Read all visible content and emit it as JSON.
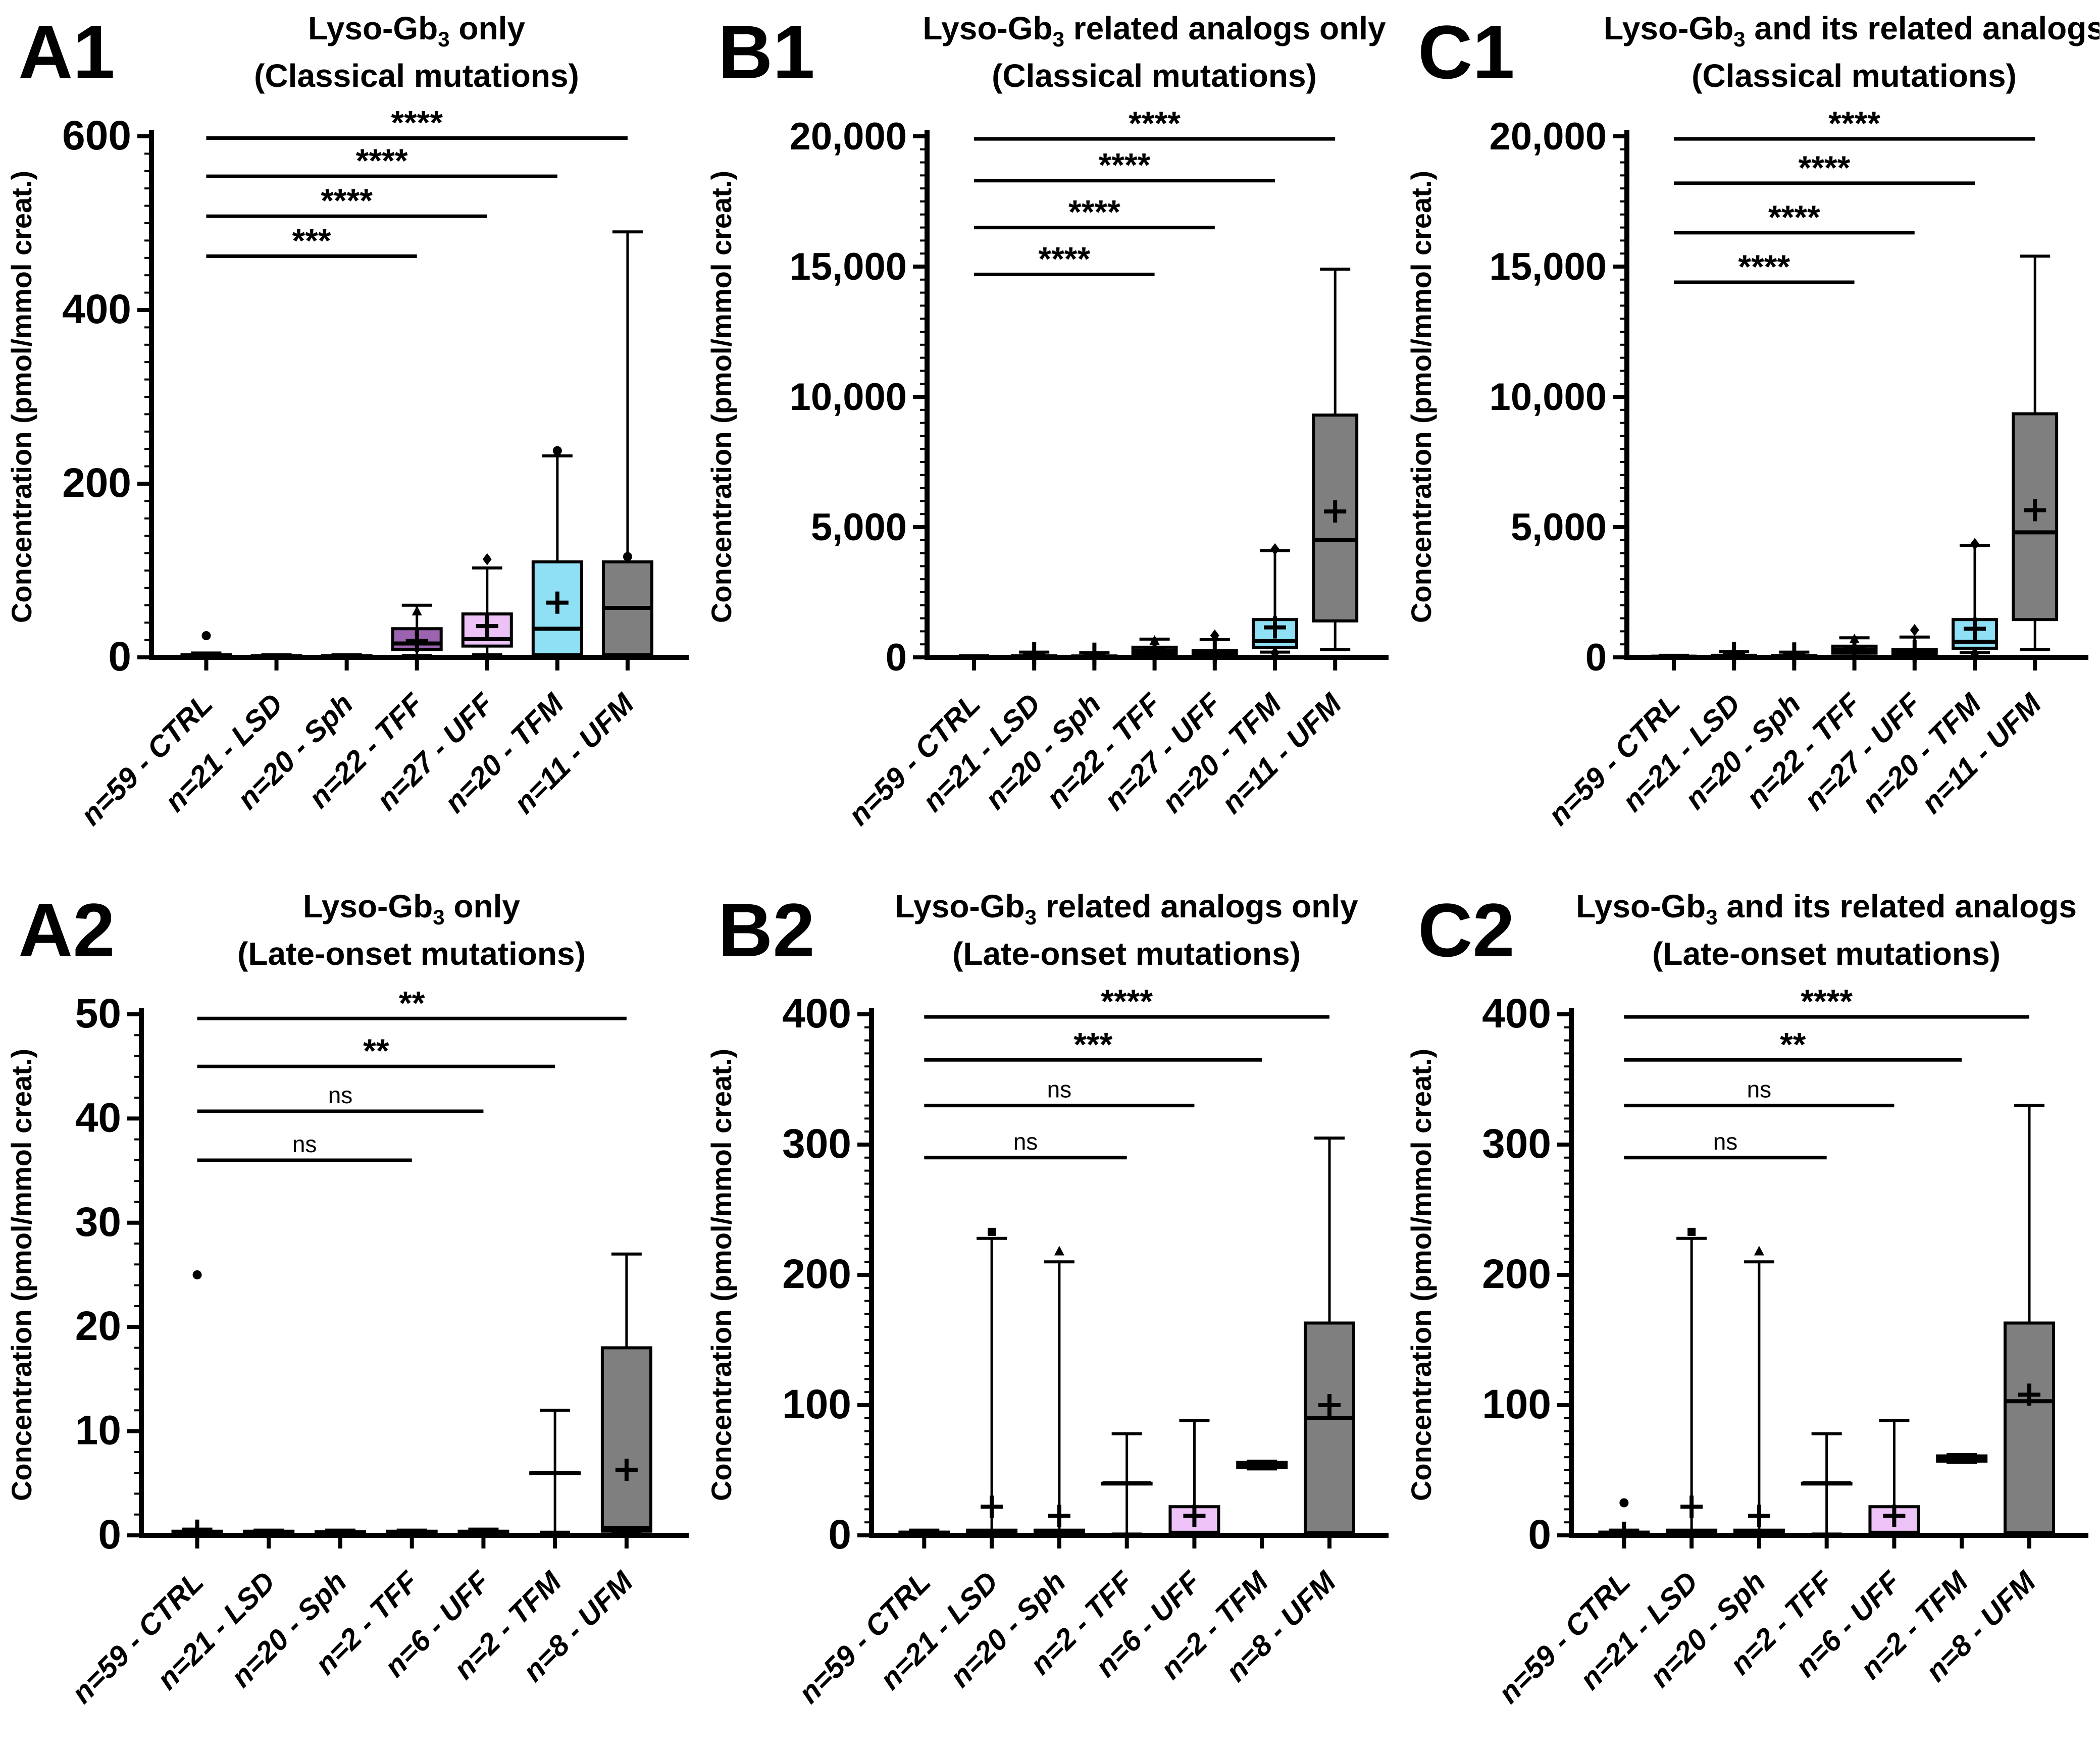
{
  "chart_data": [
    {
      "id": "A1",
      "type": "box",
      "letter": "A1",
      "title": {
        "pre": "Lyso-Gb",
        "sub": "3",
        "post": " only"
      },
      "subtitle": "(Classical mutations)",
      "ylabel": "Concentration (pmol/mmol creat.)",
      "ylim": [
        0,
        600
      ],
      "ymajor": 200,
      "yminor": 20,
      "ytick_labels": [
        "0",
        "200",
        "400",
        "600"
      ],
      "categories": [
        "n=59 - CTRL",
        "n=21 - LSD",
        "n=20 - Sph",
        "n=22 - TFF",
        "n=27 - UFF",
        "n=20 - TFM",
        "n=11 - UFM"
      ],
      "group_colors": [
        "#ffffff",
        "#ffffff",
        "#ffffff",
        "#9C64B0",
        "#EDC2F6",
        "#8FE0F5",
        "#7F7F7F"
      ],
      "boxes": [
        {
          "lo": 0.5,
          "q1": 0.8,
          "med": 1.5,
          "q3": 3,
          "hi": 5,
          "mean": null,
          "outliers": [
            {
              "v": 25,
              "g": "dot"
            }
          ]
        },
        {
          "lo": 0.3,
          "q1": 0.6,
          "med": 1,
          "q3": 2,
          "hi": 3,
          "mean": null,
          "outliers": []
        },
        {
          "lo": 0.3,
          "q1": 0.6,
          "med": 1,
          "q3": 2,
          "hi": 3,
          "mean": null,
          "outliers": []
        },
        {
          "lo": 2,
          "q1": 9,
          "med": 16,
          "q3": 33,
          "hi": 60,
          "mean": 19,
          "outliers": [
            {
              "v": 53,
              "g": "triangle"
            }
          ]
        },
        {
          "lo": 3,
          "q1": 13,
          "med": 21,
          "q3": 50,
          "hi": 103,
          "mean": 36,
          "outliers": [
            {
              "v": 113,
              "g": "diamond"
            }
          ]
        },
        {
          "lo": 1,
          "q1": 3,
          "med": 33,
          "q3": 110,
          "hi": 232,
          "mean": 63,
          "outliers": [
            {
              "v": 238,
              "g": "dot"
            }
          ]
        },
        {
          "lo": 1,
          "q1": 3,
          "med": 57,
          "q3": 110,
          "hi": 490,
          "mean": null,
          "outliers": [
            {
              "v": 116,
              "g": "dot"
            }
          ]
        }
      ],
      "significance": [
        {
          "from": 0,
          "to": 3,
          "y": 462,
          "label": "***"
        },
        {
          "from": 0,
          "to": 4,
          "y": 508,
          "label": "****"
        },
        {
          "from": 0,
          "to": 5,
          "y": 554,
          "label": "****"
        },
        {
          "from": 0,
          "to": 6,
          "y": 598,
          "label": "****"
        }
      ]
    },
    {
      "id": "B1",
      "type": "box",
      "letter": "B1",
      "title": {
        "pre": "Lyso-Gb",
        "sub": "3",
        "post": " related analogs only"
      },
      "subtitle": "(Classical mutations)",
      "ylabel": "Concentration (pmol/mmol creat.)",
      "ylim": [
        0,
        20000
      ],
      "ymajor": 5000,
      "yminor": 500,
      "ytick_labels": [
        "0",
        "5,000",
        "10,000",
        "15,000",
        "20,000"
      ],
      "categories": [
        "n=59 - CTRL",
        "n=21 - LSD",
        "n=20 - Sph",
        "n=22 - TFF",
        "n=27 - UFF",
        "n=20 - TFM",
        "n=11 - UFM"
      ],
      "group_colors": [
        "#ffffff",
        "#ffffff",
        "#ffffff",
        "#9C64B0",
        "#EDC2F6",
        "#8FE0F5",
        "#7F7F7F"
      ],
      "boxes": [
        {
          "lo": 5,
          "q1": 10,
          "med": 20,
          "q3": 35,
          "hi": 60,
          "mean": null,
          "outliers": []
        },
        {
          "lo": 5,
          "q1": 15,
          "med": 30,
          "q3": 60,
          "hi": 200,
          "mean": 160,
          "outliers": []
        },
        {
          "lo": 5,
          "q1": 15,
          "med": 30,
          "q3": 55,
          "hi": 180,
          "mean": 140,
          "outliers": []
        },
        {
          "lo": 30,
          "q1": 130,
          "med": 250,
          "q3": 390,
          "hi": 700,
          "mean": 280,
          "outliers": [
            {
              "v": 640,
              "g": "triangle"
            }
          ]
        },
        {
          "lo": 20,
          "q1": 60,
          "med": 150,
          "q3": 260,
          "hi": 680,
          "mean": 200,
          "outliers": [
            {
              "v": 840,
              "g": "diamond"
            }
          ]
        },
        {
          "lo": 200,
          "q1": 380,
          "med": 620,
          "q3": 1450,
          "hi": 4100,
          "mean": 1150,
          "outliers": [
            {
              "v": 4150,
              "g": "diamond"
            },
            {
              "v": 170,
              "g": "diamond"
            }
          ]
        },
        {
          "lo": 300,
          "q1": 1400,
          "med": 4500,
          "q3": 9300,
          "hi": 14900,
          "mean": 5600,
          "outliers": []
        }
      ],
      "significance": [
        {
          "from": 0,
          "to": 3,
          "y": 14700,
          "label": "****"
        },
        {
          "from": 0,
          "to": 4,
          "y": 16500,
          "label": "****"
        },
        {
          "from": 0,
          "to": 5,
          "y": 18300,
          "label": "****"
        },
        {
          "from": 0,
          "to": 6,
          "y": 19900,
          "label": "****"
        }
      ]
    },
    {
      "id": "C1",
      "type": "box",
      "letter": "C1",
      "title": {
        "pre": "Lyso-Gb",
        "sub": "3",
        "post": " and its related analogs"
      },
      "subtitle": "(Classical mutations)",
      "ylabel": "Concentration (pmol/mmol creat.)",
      "ylim": [
        0,
        20000
      ],
      "ymajor": 5000,
      "yminor": 500,
      "ytick_labels": [
        "0",
        "5,000",
        "10,000",
        "15,000",
        "20,000"
      ],
      "categories": [
        "n=59 - CTRL",
        "n=21 - LSD",
        "n=20 - Sph",
        "n=22 - TFF",
        "n=27 - UFF",
        "n=20 - TFM",
        "n=11 - UFM"
      ],
      "group_colors": [
        "#ffffff",
        "#ffffff",
        "#ffffff",
        "#9C64B0",
        "#EDC2F6",
        "#8FE0F5",
        "#7F7F7F"
      ],
      "boxes": [
        {
          "lo": 5,
          "q1": 12,
          "med": 25,
          "q3": 45,
          "hi": 80,
          "mean": null,
          "outliers": []
        },
        {
          "lo": 5,
          "q1": 20,
          "med": 40,
          "q3": 80,
          "hi": 220,
          "mean": 170,
          "outliers": []
        },
        {
          "lo": 5,
          "q1": 20,
          "med": 35,
          "q3": 70,
          "hi": 200,
          "mean": 150,
          "outliers": []
        },
        {
          "lo": 40,
          "q1": 160,
          "med": 280,
          "q3": 430,
          "hi": 750,
          "mean": 320,
          "outliers": [
            {
              "v": 700,
              "g": "triangle"
            }
          ]
        },
        {
          "lo": 25,
          "q1": 80,
          "med": 180,
          "q3": 300,
          "hi": 780,
          "mean": 240,
          "outliers": [
            {
              "v": 1050,
              "g": "diamond"
            }
          ]
        },
        {
          "lo": 180,
          "q1": 350,
          "med": 600,
          "q3": 1450,
          "hi": 4300,
          "mean": 1100,
          "outliers": [
            {
              "v": 4350,
              "g": "diamond"
            },
            {
              "v": 150,
              "g": "diamond"
            }
          ]
        },
        {
          "lo": 300,
          "q1": 1450,
          "med": 4800,
          "q3": 9350,
          "hi": 15400,
          "mean": 5650,
          "outliers": []
        }
      ],
      "significance": [
        {
          "from": 0,
          "to": 3,
          "y": 14400,
          "label": "****"
        },
        {
          "from": 0,
          "to": 4,
          "y": 16300,
          "label": "****"
        },
        {
          "from": 0,
          "to": 5,
          "y": 18200,
          "label": "****"
        },
        {
          "from": 0,
          "to": 6,
          "y": 19900,
          "label": "****"
        }
      ]
    },
    {
      "id": "A2",
      "type": "box",
      "letter": "A2",
      "title": {
        "pre": "Lyso-Gb",
        "sub": "3",
        "post": " only"
      },
      "subtitle": "(Late-onset mutations)",
      "ylabel": "Concentration (pmol/mmol creat.)",
      "ylim": [
        0,
        50
      ],
      "ymajor": 10,
      "yminor": 2,
      "ytick_labels": [
        "0",
        "10",
        "20",
        "30",
        "40",
        "50"
      ],
      "categories": [
        "n=59 - CTRL",
        "n=21 - LSD",
        "n=20 - Sph",
        "n=2 - TFF",
        "n=6 - UFF",
        "n=2 - TFM",
        "n=8 - UFM"
      ],
      "group_colors": [
        "#ffffff",
        "#ffffff",
        "#ffffff",
        "#9C64B0",
        "#EDC2F6",
        "#8FE0F5",
        "#7F7F7F"
      ],
      "boxes": [
        {
          "lo": 0.1,
          "q1": 0.15,
          "med": 0.25,
          "q3": 0.4,
          "hi": 0.6,
          "mean": 0.45,
          "outliers": [
            {
              "v": 25,
              "g": "dot"
            }
          ]
        },
        {
          "lo": 0.1,
          "q1": 0.15,
          "med": 0.25,
          "q3": 0.4,
          "hi": 0.5,
          "mean": null,
          "outliers": []
        },
        {
          "lo": 0.1,
          "q1": 0.15,
          "med": 0.2,
          "q3": 0.35,
          "hi": 0.5,
          "mean": null,
          "outliers": []
        },
        {
          "lo": 0.1,
          "q1": 0.15,
          "med": 0.25,
          "q3": 0.4,
          "hi": 0.5,
          "mean": null,
          "outliers": []
        },
        {
          "lo": 0.1,
          "q1": 0.15,
          "med": 0.25,
          "q3": 0.4,
          "hi": 0.6,
          "mean": null,
          "outliers": []
        },
        {
          "lo": 0.3,
          "q1": 6,
          "med": 6,
          "q3": 6,
          "hi": 12,
          "mean": null,
          "outliers": []
        },
        {
          "lo": 0.2,
          "q1": 0.4,
          "med": 0.7,
          "q3": 18,
          "hi": 27,
          "mean": 6.3,
          "outliers": []
        }
      ],
      "significance": [
        {
          "from": 0,
          "to": 3,
          "y": 36,
          "label": "ns"
        },
        {
          "from": 0,
          "to": 4,
          "y": 40.7,
          "label": "ns"
        },
        {
          "from": 0,
          "to": 5,
          "y": 45,
          "label": "**"
        },
        {
          "from": 0,
          "to": 6,
          "y": 49.6,
          "label": "**"
        }
      ]
    },
    {
      "id": "B2",
      "type": "box",
      "letter": "B2",
      "title": {
        "pre": "Lyso-Gb",
        "sub": "3",
        "post": " related analogs only"
      },
      "subtitle": "(Late-onset mutations)",
      "ylabel": "Concentration (pmol/mmol creat.)",
      "ylim": [
        0,
        400
      ],
      "ymajor": 100,
      "yminor": 10,
      "ytick_labels": [
        "0",
        "100",
        "200",
        "300",
        "400"
      ],
      "categories": [
        "n=59 - CTRL",
        "n=21 - LSD",
        "n=20 - Sph",
        "n=2 - TFF",
        "n=6 - UFF",
        "n=2 - TFM",
        "n=8 - UFM"
      ],
      "group_colors": [
        "#ffffff",
        "#ffffff",
        "#ffffff",
        "#9C64B0",
        "#EDC2F6",
        "#8FE0F5",
        "#7F7F7F"
      ],
      "boxes": [
        {
          "lo": 0.5,
          "q1": 0.8,
          "med": 1.5,
          "q3": 2.5,
          "hi": 4,
          "mean": null,
          "outliers": []
        },
        {
          "lo": 0.5,
          "q1": 1,
          "med": 2,
          "q3": 4,
          "hi": 228,
          "mean": 22,
          "outliers": [
            {
              "v": 233,
              "g": "square"
            }
          ]
        },
        {
          "lo": 0.5,
          "q1": 1,
          "med": 2,
          "q3": 4,
          "hi": 210,
          "mean": 15,
          "outliers": [
            {
              "v": 218,
              "g": "triangle"
            }
          ]
        },
        {
          "lo": 1,
          "q1": 40,
          "med": 40,
          "q3": 40,
          "hi": 78,
          "mean": null,
          "outliers": []
        },
        {
          "lo": 0.5,
          "q1": 1,
          "med": 2,
          "q3": 22,
          "hi": 88,
          "mean": 15,
          "outliers": []
        },
        {
          "lo": 51,
          "q1": 52,
          "med": 54,
          "q3": 56,
          "hi": 57,
          "mean": null,
          "outliers": []
        },
        {
          "lo": 1,
          "q1": 2,
          "med": 90,
          "q3": 163,
          "hi": 305,
          "mean": 100,
          "outliers": []
        }
      ],
      "significance": [
        {
          "from": 0,
          "to": 3,
          "y": 290,
          "label": "ns"
        },
        {
          "from": 0,
          "to": 4,
          "y": 330,
          "label": "ns"
        },
        {
          "from": 0,
          "to": 5,
          "y": 365,
          "label": "***"
        },
        {
          "from": 0,
          "to": 6,
          "y": 398,
          "label": "****"
        }
      ]
    },
    {
      "id": "C2",
      "type": "box",
      "letter": "C2",
      "title": {
        "pre": "Lyso-Gb",
        "sub": "3",
        "post": " and its related analogs"
      },
      "subtitle": "(Late-onset mutations)",
      "ylabel": "Concentration (pmol/mmol creat.)",
      "ylim": [
        0,
        400
      ],
      "ymajor": 100,
      "yminor": 10,
      "ytick_labels": [
        "0",
        "100",
        "200",
        "300",
        "400"
      ],
      "categories": [
        "n=59 - CTRL",
        "n=21 - LSD",
        "n=20 - Sph",
        "n=2 - TFF",
        "n=6 - UFF",
        "n=2 - TFM",
        "n=8 - UFM"
      ],
      "group_colors": [
        "#ffffff",
        "#ffffff",
        "#ffffff",
        "#9C64B0",
        "#EDC2F6",
        "#8FE0F5",
        "#7F7F7F"
      ],
      "boxes": [
        {
          "lo": 0.5,
          "q1": 0.8,
          "med": 1.5,
          "q3": 2.5,
          "hi": 4,
          "mean": 2,
          "outliers": [
            {
              "v": 25,
              "g": "dot"
            }
          ]
        },
        {
          "lo": 0.5,
          "q1": 1,
          "med": 2,
          "q3": 4,
          "hi": 228,
          "mean": 22,
          "outliers": [
            {
              "v": 233,
              "g": "square"
            }
          ]
        },
        {
          "lo": 0.5,
          "q1": 1,
          "med": 2,
          "q3": 4,
          "hi": 210,
          "mean": 15,
          "outliers": [
            {
              "v": 218,
              "g": "triangle"
            }
          ]
        },
        {
          "lo": 1,
          "q1": 40,
          "med": 40,
          "q3": 40,
          "hi": 78,
          "mean": null,
          "outliers": []
        },
        {
          "lo": 0.5,
          "q1": 1,
          "med": 2,
          "q3": 22,
          "hi": 88,
          "mean": 15,
          "outliers": []
        },
        {
          "lo": 56,
          "q1": 57,
          "med": 59,
          "q3": 61,
          "hi": 62,
          "mean": null,
          "outliers": []
        },
        {
          "lo": 1,
          "q1": 2,
          "med": 103,
          "q3": 163,
          "hi": 330,
          "mean": 108,
          "outliers": []
        }
      ],
      "significance": [
        {
          "from": 0,
          "to": 3,
          "y": 290,
          "label": "ns"
        },
        {
          "from": 0,
          "to": 4,
          "y": 330,
          "label": "ns"
        },
        {
          "from": 0,
          "to": 5,
          "y": 365,
          "label": "**"
        },
        {
          "from": 0,
          "to": 6,
          "y": 398,
          "label": "****"
        }
      ]
    }
  ]
}
